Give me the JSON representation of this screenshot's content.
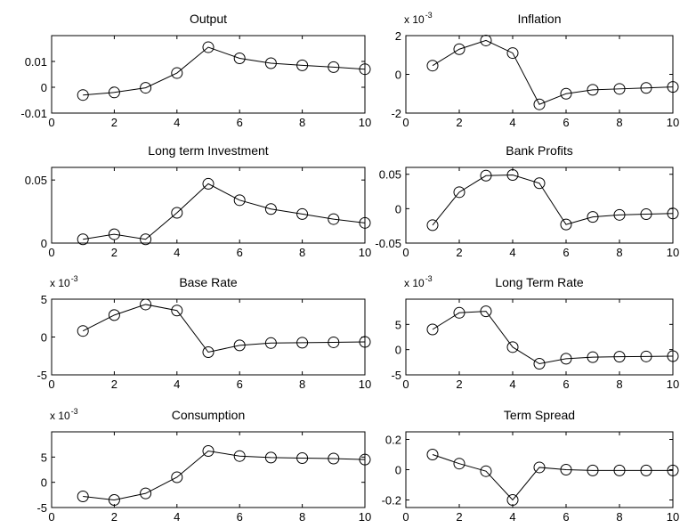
{
  "chart_data": [
    {
      "type": "line",
      "title": "Output",
      "x": [
        1,
        2,
        3,
        4,
        5,
        6,
        7,
        8,
        9,
        10
      ],
      "series": [
        {
          "values": [
            -0.003,
            -0.002,
            -0.0002,
            0.0055,
            0.0155,
            0.0112,
            0.0093,
            0.0085,
            0.0078,
            0.007
          ]
        }
      ],
      "xlim": [
        0,
        10
      ],
      "ylim": [
        -0.01,
        0.02
      ],
      "xticks": [
        "0",
        "2",
        "4",
        "6",
        "8",
        "10"
      ],
      "yticks": [
        "-0.01",
        "0",
        "0.01"
      ],
      "marker": "circle"
    },
    {
      "type": "line",
      "title": "Inflation",
      "multiplier": "x 10",
      "multiplier_exp": "-3",
      "x": [
        1,
        2,
        3,
        4,
        5,
        6,
        7,
        8,
        9,
        10
      ],
      "series": [
        {
          "values": [
            0.45,
            1.3,
            1.75,
            1.1,
            -1.55,
            -1.0,
            -0.8,
            -0.75,
            -0.7,
            -0.65
          ]
        }
      ],
      "xlim": [
        0,
        10
      ],
      "ylim": [
        -2,
        2
      ],
      "xticks": [
        "0",
        "2",
        "4",
        "6",
        "8",
        "10"
      ],
      "yticks": [
        "-2",
        "0",
        "2"
      ],
      "marker": "circle"
    },
    {
      "type": "line",
      "title": "Long term Investment",
      "x": [
        1,
        2,
        3,
        4,
        5,
        6,
        7,
        8,
        9,
        10
      ],
      "series": [
        {
          "values": [
            0.003,
            0.007,
            0.003,
            0.024,
            0.047,
            0.034,
            0.027,
            0.023,
            0.019,
            0.016
          ]
        }
      ],
      "xlim": [
        0,
        10
      ],
      "ylim": [
        0,
        0.06
      ],
      "xticks": [
        "0",
        "2",
        "4",
        "6",
        "8",
        "10"
      ],
      "yticks": [
        "0",
        "0.05"
      ],
      "marker": "circle"
    },
    {
      "type": "line",
      "title": "Bank Profits",
      "x": [
        1,
        2,
        3,
        4,
        5,
        6,
        7,
        8,
        9,
        10
      ],
      "series": [
        {
          "values": [
            -0.024,
            0.024,
            0.048,
            0.049,
            0.037,
            -0.023,
            -0.012,
            -0.009,
            -0.008,
            -0.007
          ]
        }
      ],
      "xlim": [
        0,
        10
      ],
      "ylim": [
        -0.05,
        0.06
      ],
      "xticks": [
        "0",
        "2",
        "4",
        "6",
        "8",
        "10"
      ],
      "yticks": [
        "-0.05",
        "0",
        "0.05"
      ],
      "marker": "circle"
    },
    {
      "type": "line",
      "title": "Base Rate",
      "multiplier": "x 10",
      "multiplier_exp": "-3",
      "x": [
        1,
        2,
        3,
        4,
        5,
        6,
        7,
        8,
        9,
        10
      ],
      "series": [
        {
          "values": [
            0.8,
            2.9,
            4.3,
            3.5,
            -2.0,
            -1.1,
            -0.8,
            -0.75,
            -0.7,
            -0.65
          ]
        }
      ],
      "xlim": [
        0,
        10
      ],
      "ylim": [
        -5,
        5
      ],
      "xticks": [
        "0",
        "2",
        "4",
        "6",
        "8",
        "10"
      ],
      "yticks": [
        "-5",
        "0",
        "5"
      ],
      "marker": "circle"
    },
    {
      "type": "line",
      "title": "Long Term Rate",
      "multiplier": "x 10",
      "multiplier_exp": "-3",
      "x": [
        1,
        2,
        3,
        4,
        5,
        6,
        7,
        8,
        9,
        10
      ],
      "series": [
        {
          "values": [
            4.0,
            7.3,
            7.6,
            0.5,
            -2.8,
            -1.8,
            -1.5,
            -1.4,
            -1.35,
            -1.3
          ]
        }
      ],
      "xlim": [
        0,
        10
      ],
      "ylim": [
        -5,
        10
      ],
      "xticks": [
        "0",
        "2",
        "4",
        "6",
        "8",
        "10"
      ],
      "yticks": [
        "-5",
        "0",
        "5"
      ],
      "marker": "circle"
    },
    {
      "type": "line",
      "title": "Consumption",
      "multiplier": "x 10",
      "multiplier_exp": "-3",
      "x": [
        1,
        2,
        3,
        4,
        5,
        6,
        7,
        8,
        9,
        10
      ],
      "series": [
        {
          "values": [
            -2.8,
            -3.5,
            -2.2,
            1.0,
            6.2,
            5.2,
            4.9,
            4.8,
            4.7,
            4.5
          ]
        }
      ],
      "xlim": [
        0,
        10
      ],
      "ylim": [
        -5,
        10
      ],
      "xticks": [
        "0",
        "2",
        "4",
        "6",
        "8",
        "10"
      ],
      "yticks": [
        "-5",
        "0",
        "5"
      ],
      "marker": "circle"
    },
    {
      "type": "line",
      "title": "Term Spread",
      "x": [
        1,
        2,
        3,
        4,
        5,
        6,
        7,
        8,
        9,
        10
      ],
      "series": [
        {
          "values": [
            0.1,
            0.04,
            -0.01,
            -0.2,
            0.015,
            0.0,
            -0.005,
            -0.005,
            -0.005,
            -0.005
          ]
        }
      ],
      "xlim": [
        0,
        10
      ],
      "ylim": [
        -0.25,
        0.25
      ],
      "xticks": [
        "0",
        "2",
        "4",
        "6",
        "8",
        "10"
      ],
      "yticks": [
        "-0.2",
        "0",
        "0.2"
      ],
      "marker": "circle"
    }
  ]
}
